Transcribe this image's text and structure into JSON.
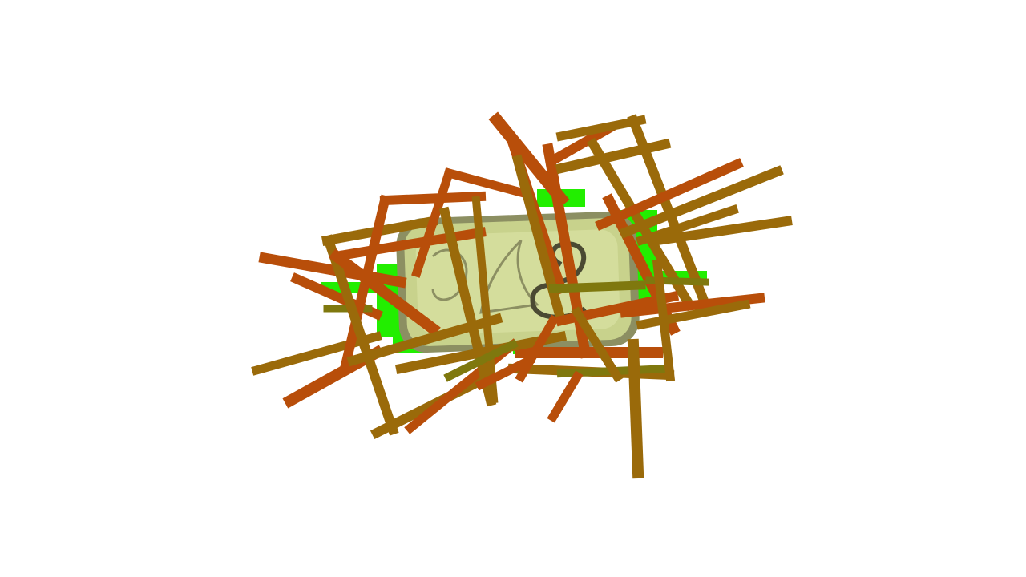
{
  "scene": {
    "background": "#ffffff",
    "object": "sardine-tin",
    "object_colors": {
      "lid": "#c8d28c",
      "lid_highlight": "#dfe6aa",
      "rim": "#8c8f62",
      "ring_pull": "#4b4a33"
    },
    "highlight_color": "#22ee00",
    "stroke_colors": {
      "orange": "#b84e0a",
      "olive": "#9a6a0a",
      "olive_green": "#7f780e"
    }
  }
}
